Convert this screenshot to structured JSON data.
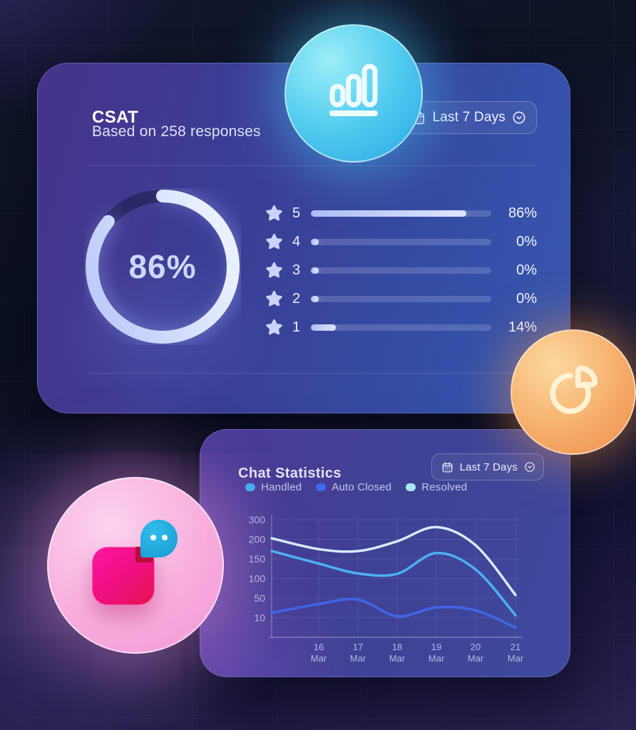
{
  "csat_card": {
    "title": "CSAT",
    "subtitle": "Based on 258 responses",
    "period_button": {
      "label": "Last 7 Days"
    },
    "donut": {
      "center_label": "86%",
      "percent": 86
    },
    "ratings": [
      {
        "stars": "5",
        "percent": 86,
        "label": "86%"
      },
      {
        "stars": "4",
        "percent": 0,
        "label": "0%"
      },
      {
        "stars": "3",
        "percent": 0,
        "label": "0%"
      },
      {
        "stars": "2",
        "percent": 0,
        "label": "0%"
      },
      {
        "stars": "1",
        "percent": 14,
        "label": "14%"
      }
    ],
    "colors": {
      "ring_fill": "#ccd9fc",
      "ring_track": "rgba(16,20,50,0.45)",
      "bar_fill": "#c4d2fa",
      "bar_track": "rgba(235,240,255,0.18)"
    }
  },
  "chat_card": {
    "title": "Chat Statistics",
    "period_button": {
      "label": "Last 7 Days"
    },
    "legend": [
      {
        "label": "Handled",
        "color": "#3fadf2"
      },
      {
        "label": "Auto Closed",
        "color": "#3e6af0"
      },
      {
        "label": "Resolved",
        "color": "#a5e8fd"
      }
    ]
  },
  "chart_data": [
    {
      "id": "csat-donut",
      "type": "donut",
      "title": "CSAT",
      "value_percent": 86,
      "center_label": "86%",
      "breakdown_percent_by_stars": {
        "5": 86,
        "4": 0,
        "3": 0,
        "2": 0,
        "1": 14
      }
    },
    {
      "id": "chat-line",
      "type": "line",
      "title": "Chat Statistics",
      "x_labels": [
        "16 Mar",
        "17 Mar",
        "18 Mar",
        "19 Mar",
        "20 Mar",
        "21 Mar"
      ],
      "y_ticks": [
        300,
        200,
        150,
        100,
        50,
        10
      ],
      "grid": true,
      "legend_position": "top-left",
      "includes_leadin_point_at_axis": true,
      "series": [
        {
          "name": "Resolved",
          "color": "#d6ebfb",
          "values": [
            205,
            175,
            170,
            195,
            262,
            185,
            58
          ]
        },
        {
          "name": "Handled",
          "color": "#4cb1f2",
          "values": [
            170,
            138,
            113,
            112,
            165,
            123,
            15
          ]
        },
        {
          "name": "Auto Closed",
          "color": "#3f66ea",
          "values": [
            20,
            38,
            47,
            13,
            31,
            25,
            -10
          ]
        }
      ]
    }
  ],
  "decor": {
    "top_bubble_icon": "bar-chart-icon",
    "right_bubble_icon": "pie-chart-icon",
    "bottom_left_bubble_icon": "chat-app-logo"
  }
}
